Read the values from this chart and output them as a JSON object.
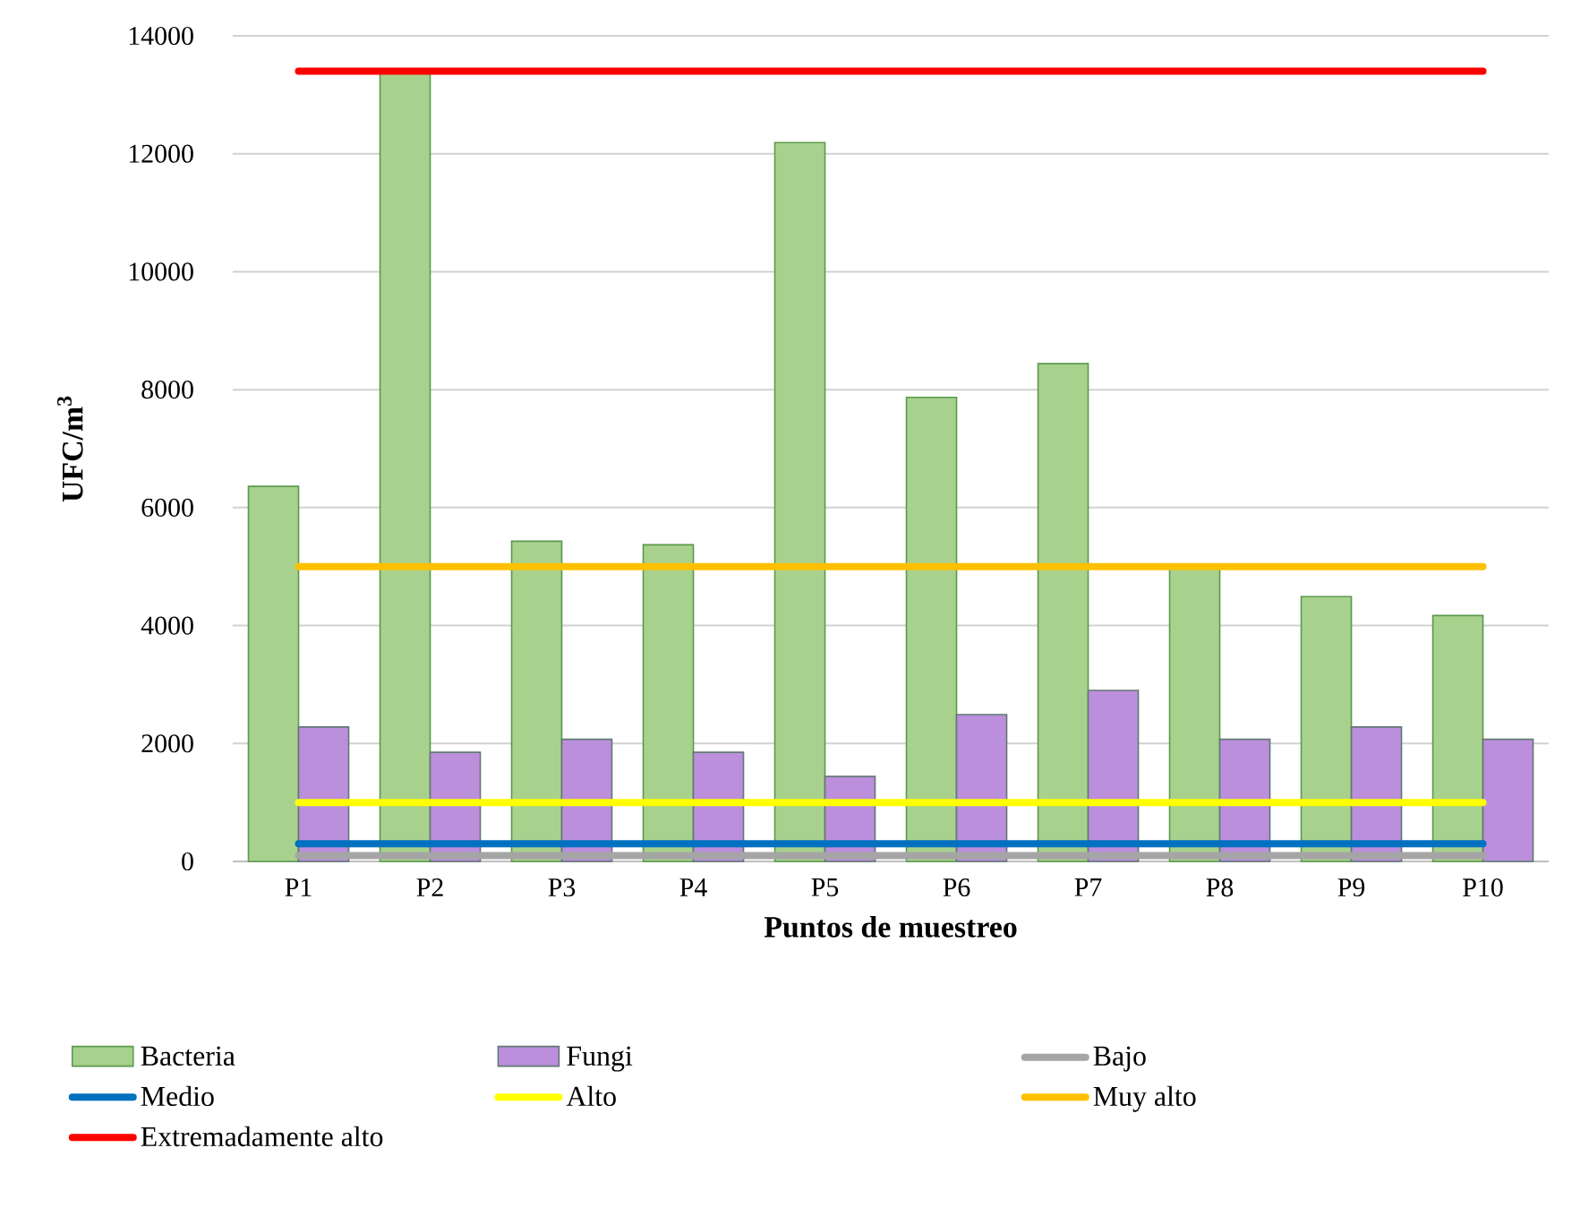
{
  "chart_data": {
    "type": "bar",
    "xlabel": "Puntos de muestreo",
    "ylabel": "UFC/m$^{3}$",
    "categories": [
      "P1",
      "P2",
      "P3",
      "P4",
      "P5",
      "P6",
      "P7",
      "P8",
      "P9",
      "P10"
    ],
    "series": [
      {
        "name": "Bacteria",
        "color": "#a9d18e",
        "values": [
          6360,
          13400,
          5430,
          5370,
          12190,
          7870,
          8440,
          5000,
          4490,
          4170
        ]
      },
      {
        "name": "Fungi",
        "color": "#bb8fdc",
        "values": [
          2280,
          1850,
          2070,
          1850,
          1440,
          2490,
          2900,
          2070,
          2280,
          2070
        ]
      },
      {
        "name": "Bajo",
        "type": "line",
        "color": "#a5a5a5",
        "values": [
          100,
          100,
          100,
          100,
          100,
          100,
          100,
          100,
          100,
          100
        ]
      },
      {
        "name": "Medio",
        "type": "line",
        "color": "#0070c0",
        "values": [
          300,
          300,
          300,
          300,
          300,
          300,
          300,
          300,
          300,
          300
        ]
      },
      {
        "name": "Alto",
        "type": "line",
        "color": "#ffff00",
        "values": [
          1000,
          1000,
          1000,
          1000,
          1000,
          1000,
          1000,
          1000,
          1000,
          1000
        ]
      },
      {
        "name": "Muy alto",
        "type": "line",
        "color": "#ffc000",
        "values": [
          5000,
          5000,
          5000,
          5000,
          5000,
          5000,
          5000,
          5000,
          5000,
          5000
        ]
      },
      {
        "name": "Extremadamente alto",
        "type": "line",
        "color": "#ff0000",
        "values": [
          13400,
          13400,
          13400,
          13400,
          13400,
          13400,
          13400,
          13400,
          13400,
          13400
        ]
      }
    ],
    "ylim": [
      0,
      14000
    ],
    "yticks": [
      0,
      2000,
      4000,
      6000,
      8000,
      10000,
      12000,
      14000
    ],
    "grid": "y",
    "legend": "bottom"
  }
}
